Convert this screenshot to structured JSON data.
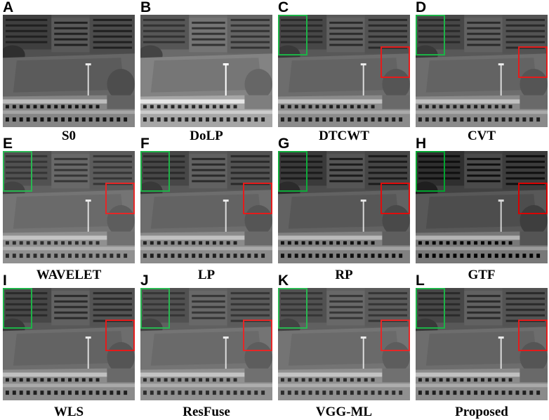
{
  "panels": [
    {
      "letter": "A",
      "caption": "S0",
      "variant": "s0",
      "boxes": false
    },
    {
      "letter": "B",
      "caption": "DoLP",
      "variant": "dolp",
      "boxes": false
    },
    {
      "letter": "C",
      "caption": "DTCWT",
      "variant": "fused",
      "boxes": true
    },
    {
      "letter": "D",
      "caption": "CVT",
      "variant": "fused",
      "boxes": true
    },
    {
      "letter": "E",
      "caption": "WAVELET",
      "variant": "soft",
      "boxes": true
    },
    {
      "letter": "F",
      "caption": "LP",
      "variant": "fused",
      "boxes": true
    },
    {
      "letter": "G",
      "caption": "RP",
      "variant": "noisy",
      "boxes": true
    },
    {
      "letter": "H",
      "caption": "GTF",
      "variant": "gtf",
      "boxes": true
    },
    {
      "letter": "I",
      "caption": "WLS",
      "variant": "fused",
      "boxes": true
    },
    {
      "letter": "J",
      "caption": "ResFuse",
      "variant": "soft",
      "boxes": true
    },
    {
      "letter": "K",
      "caption": "VGG-ML",
      "variant": "soft",
      "boxes": true
    },
    {
      "letter": "L",
      "caption": "Proposed",
      "variant": "fused",
      "boxes": true
    }
  ],
  "colors": {
    "green_box": "#22b04a",
    "red_box": "#e02020"
  }
}
